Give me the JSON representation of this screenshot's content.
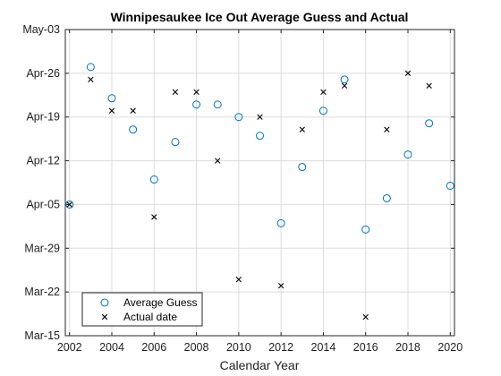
{
  "chart_data": {
    "type": "scatter",
    "title": "Winnipesaukee Ice Out Average Guess and Actual",
    "xlabel": "Calendar Year",
    "ylabel": "",
    "xlim": [
      2001.8,
      2020.2
    ],
    "x_ticks": [
      2002,
      2004,
      2006,
      2008,
      2010,
      2012,
      2014,
      2016,
      2018,
      2020
    ],
    "ylim": [
      "Mar-15",
      "May-03"
    ],
    "y_ticks": [
      "Mar-15",
      "Mar-22",
      "Mar-29",
      "Apr-05",
      "Apr-12",
      "Apr-19",
      "Apr-26",
      "May-03"
    ],
    "grid": true,
    "legend_position": "bottom-left",
    "series": [
      {
        "name": "Average Guess",
        "marker": "circle",
        "color": "#0072BD",
        "points": [
          {
            "x": 2002,
            "y": "Apr-05"
          },
          {
            "x": 2003,
            "y": "Apr-27"
          },
          {
            "x": 2004,
            "y": "Apr-22"
          },
          {
            "x": 2005,
            "y": "Apr-17"
          },
          {
            "x": 2006,
            "y": "Apr-09"
          },
          {
            "x": 2007,
            "y": "Apr-15"
          },
          {
            "x": 2008,
            "y": "Apr-21"
          },
          {
            "x": 2009,
            "y": "Apr-21"
          },
          {
            "x": 2010,
            "y": "Apr-19"
          },
          {
            "x": 2011,
            "y": "Apr-16"
          },
          {
            "x": 2012,
            "y": "Apr-02"
          },
          {
            "x": 2013,
            "y": "Apr-11"
          },
          {
            "x": 2014,
            "y": "Apr-20"
          },
          {
            "x": 2015,
            "y": "Apr-25"
          },
          {
            "x": 2016,
            "y": "Apr-01"
          },
          {
            "x": 2017,
            "y": "Apr-06"
          },
          {
            "x": 2018,
            "y": "Apr-13"
          },
          {
            "x": 2019,
            "y": "Apr-18"
          },
          {
            "x": 2020,
            "y": "Apr-08"
          }
        ]
      },
      {
        "name": "Actual date",
        "marker": "x",
        "color": "#000000",
        "points": [
          {
            "x": 2002,
            "y": "Apr-05"
          },
          {
            "x": 2003,
            "y": "Apr-25"
          },
          {
            "x": 2004,
            "y": "Apr-20"
          },
          {
            "x": 2005,
            "y": "Apr-20"
          },
          {
            "x": 2006,
            "y": "Apr-03"
          },
          {
            "x": 2007,
            "y": "Apr-23"
          },
          {
            "x": 2008,
            "y": "Apr-23"
          },
          {
            "x": 2009,
            "y": "Apr-12"
          },
          {
            "x": 2010,
            "y": "Mar-24"
          },
          {
            "x": 2011,
            "y": "Apr-19"
          },
          {
            "x": 2012,
            "y": "Mar-23"
          },
          {
            "x": 2013,
            "y": "Apr-17"
          },
          {
            "x": 2014,
            "y": "Apr-23"
          },
          {
            "x": 2015,
            "y": "Apr-24"
          },
          {
            "x": 2016,
            "y": "Mar-18"
          },
          {
            "x": 2017,
            "y": "Apr-17"
          },
          {
            "x": 2018,
            "y": "Apr-26"
          },
          {
            "x": 2019,
            "y": "Apr-24"
          }
        ]
      }
    ]
  }
}
